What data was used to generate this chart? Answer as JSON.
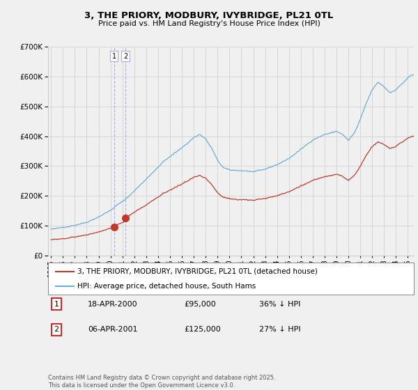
{
  "title": "3, THE PRIORY, MODBURY, IVYBRIDGE, PL21 0TL",
  "subtitle": "Price paid vs. HM Land Registry's House Price Index (HPI)",
  "legend_line1": "3, THE PRIORY, MODBURY, IVYBRIDGE, PL21 0TL (detached house)",
  "legend_line2": "HPI: Average price, detached house, South Hams",
  "purchase1_date": "18-APR-2000",
  "purchase1_price": 95000,
  "purchase1_label": "36% ↓ HPI",
  "purchase2_date": "06-APR-2001",
  "purchase2_price": 125000,
  "purchase2_label": "27% ↓ HPI",
  "footnote": "Contains HM Land Registry data © Crown copyright and database right 2025.\nThis data is licensed under the Open Government Licence v3.0.",
  "hpi_color": "#6aaed6",
  "price_color": "#c0392b",
  "point_color": "#c0392b",
  "background_color": "#f0f0f0",
  "grid_color": "#cccccc",
  "ylim": [
    0,
    700000
  ],
  "xlim_start": 1994.75,
  "xlim_end": 2025.5,
  "hpi_waypoints_t": [
    1995.0,
    1996.0,
    1997.0,
    1998.0,
    1999.0,
    2000.0,
    2000.5,
    2001.0,
    2001.5,
    2002.0,
    2003.0,
    2004.0,
    2004.5,
    2005.5,
    2006.5,
    2007.0,
    2007.5,
    2008.0,
    2008.5,
    2009.0,
    2009.5,
    2010.0,
    2011.0,
    2012.0,
    2013.0,
    2014.0,
    2015.0,
    2016.0,
    2017.0,
    2018.0,
    2019.0,
    2019.5,
    2020.0,
    2020.5,
    2021.0,
    2021.5,
    2022.0,
    2022.5,
    2023.0,
    2023.5,
    2024.0,
    2024.5,
    2025.0,
    2025.3
  ],
  "hpi_waypoints_v": [
    88000,
    93000,
    100000,
    110000,
    128000,
    148000,
    165000,
    178000,
    195000,
    215000,
    255000,
    295000,
    315000,
    345000,
    375000,
    395000,
    405000,
    390000,
    360000,
    320000,
    295000,
    288000,
    285000,
    282000,
    290000,
    305000,
    325000,
    355000,
    385000,
    405000,
    415000,
    405000,
    385000,
    410000,
    455000,
    510000,
    555000,
    580000,
    565000,
    545000,
    555000,
    575000,
    595000,
    605000
  ],
  "p1_t": 2000.292,
  "p2_t": 2001.25
}
